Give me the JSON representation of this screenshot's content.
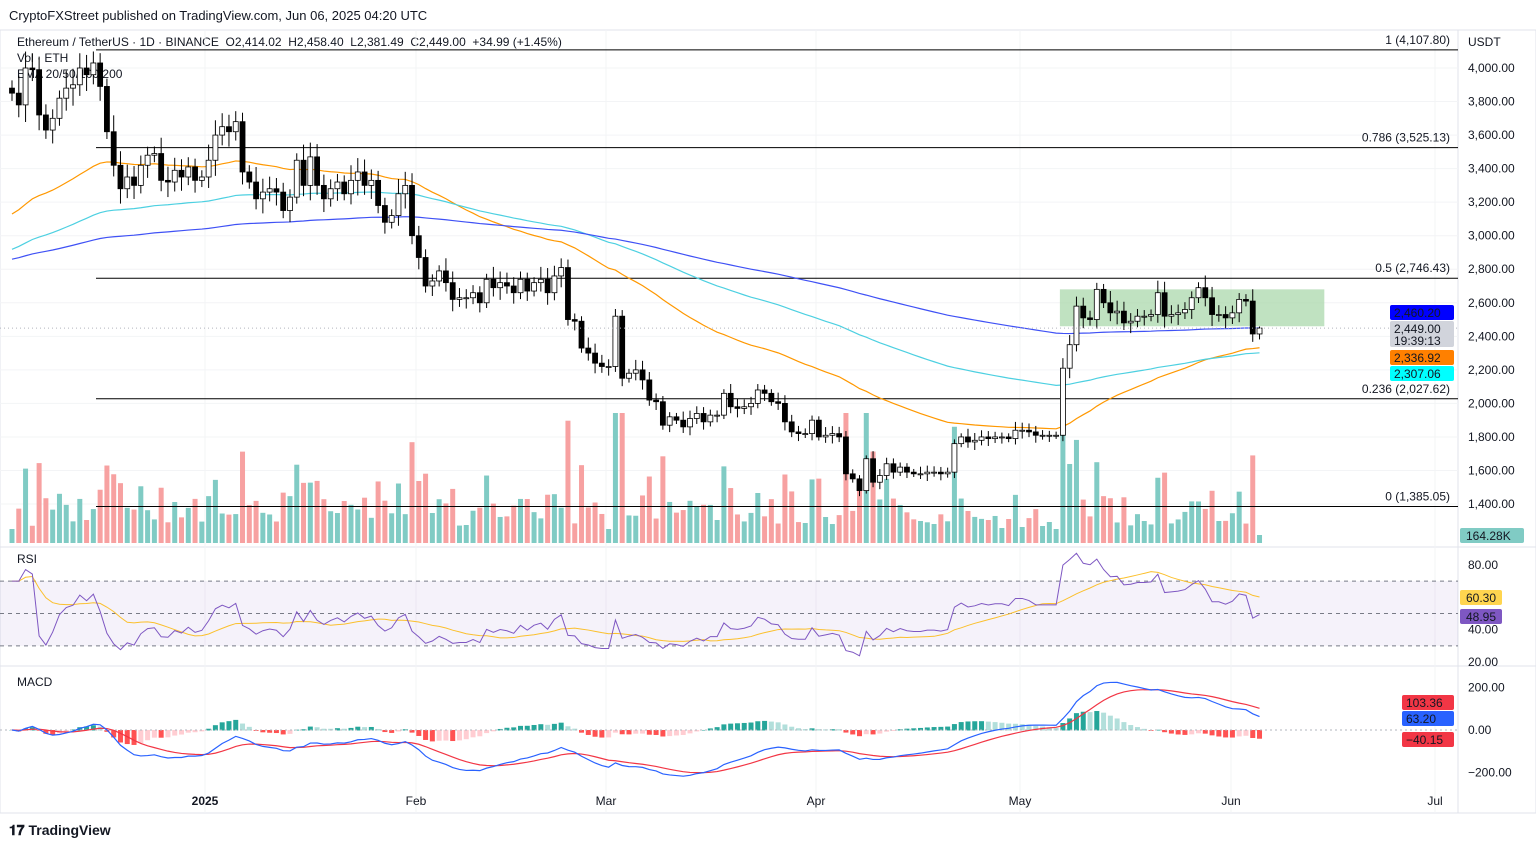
{
  "header": {
    "published": "CryptoFXStreet published on TradingView.com, Jun 06, 2025 04:20 UTC"
  },
  "legend": {
    "symbol": "Ethereum / TetherUS · 1D · BINANCE",
    "open": "O2,414.02",
    "high": "H2,458.40",
    "low": "L2,381.49",
    "close": "C2,449.00",
    "change": "+34.99 (+1.45%)",
    "volume": "Vol · ETH",
    "ema": "EMA 20/50/100/200",
    "rsi": "RSI",
    "macd": "MACD"
  },
  "brand": "TradingView",
  "chart_data": {
    "type": "candlestick",
    "x_start": "2024-12-04",
    "x_end": "2025-06-06",
    "x_tick_labels": [
      "2025",
      "Feb",
      "Mar",
      "Apr",
      "May",
      "Jun",
      "Jul"
    ],
    "y_unit": "USDT",
    "y_ticks": [
      4000,
      3800,
      3600,
      3400,
      3200,
      3000,
      2800,
      2600,
      2400,
      2200,
      2000,
      1800,
      1600,
      1400
    ],
    "closes": [
      3850,
      3780,
      4000,
      3990,
      3720,
      3630,
      3700,
      3820,
      3880,
      3900,
      4000,
      3960,
      4030,
      3890,
      3620,
      3420,
      3280,
      3350,
      3300,
      3420,
      3480,
      3490,
      3330,
      3320,
      3390,
      3350,
      3410,
      3330,
      3350,
      3450,
      3600,
      3650,
      3620,
      3680,
      3380,
      3320,
      3220,
      3260,
      3280,
      3260,
      3150,
      3230,
      3450,
      3300,
      3470,
      3300,
      3220,
      3280,
      3320,
      3250,
      3330,
      3380,
      3300,
      3330,
      3180,
      3080,
      3120,
      3250,
      3300,
      3000,
      2870,
      2700,
      2730,
      2790,
      2720,
      2620,
      2630,
      2630,
      2660,
      2600,
      2740,
      2690,
      2720,
      2700,
      2660,
      2740,
      2670,
      2720,
      2740,
      2660,
      2760,
      2810,
      2500,
      2490,
      2330,
      2300,
      2240,
      2220,
      2220,
      2520,
      2150,
      2180,
      2200,
      2140,
      2020,
      2010,
      1870,
      1920,
      1900,
      1860,
      1910,
      1940,
      1890,
      1930,
      1930,
      2060,
      1980,
      1970,
      1980,
      2000,
      2080,
      2060,
      2010,
      2000,
      1890,
      1830,
      1820,
      1820,
      1900,
      1800,
      1810,
      1820,
      1800,
      1580,
      1550,
      1480,
      1670,
      1530,
      1570,
      1640,
      1590,
      1620,
      1590,
      1580,
      1580,
      1590,
      1590,
      1580,
      1590,
      1760,
      1800,
      1770,
      1780,
      1800,
      1790,
      1800,
      1800,
      1790,
      1840,
      1840,
      1830,
      1810,
      1810,
      1810,
      1810,
      2210,
      2350,
      2580,
      2510,
      2500,
      2680,
      2600,
      2540,
      2550,
      2480,
      2490,
      2520,
      2520,
      2530,
      2660,
      2520,
      2530,
      2540,
      2560,
      2630,
      2690,
      2630,
      2530,
      2530,
      2510,
      2540,
      2620,
      2610,
      2414,
      2449
    ],
    "last_open": 2414.02,
    "last_high": 2458.4,
    "last_low": 2381.49,
    "fib_levels": [
      {
        "label": "1 (4,107.80)",
        "value": 4107.8
      },
      {
        "label": "0.786 (3,525.13)",
        "value": 3525.13
      },
      {
        "label": "0.5 (2,746.43)",
        "value": 2746.43
      },
      {
        "label": "0.236 (2,027.62)",
        "value": 2027.62
      },
      {
        "label": "0 (1,385.05)",
        "value": 1385.05
      }
    ],
    "consolidation_box": {
      "from": "2025-05-08",
      "to": "2025-06-06",
      "low": 2460,
      "high": 2680,
      "color": "#a5d6a7"
    },
    "price_labels": [
      {
        "text": "2,460.20",
        "color": "#0000ff",
        "fg": "#ffffff",
        "value": 2460.2
      },
      {
        "text": "2,449.00",
        "sub": "19:39:13",
        "color": "#d1d4dc",
        "fg": "#131722",
        "value": 2449
      },
      {
        "text": "2,336.92",
        "color": "#ff8000",
        "fg": "#ffffff",
        "value": 2336.92
      },
      {
        "text": "2,307.06",
        "color": "#00ffff",
        "fg": "#131722",
        "value": 2307.06
      }
    ],
    "ema_colors": {
      "ema50": "#ff9800",
      "ema100": "#4dd0e1",
      "ema200": "#3f51f5"
    },
    "volume_label": "164.28K",
    "rsi": {
      "ticks": [
        80,
        40,
        20
      ],
      "labels": [
        {
          "text": "60.30",
          "color": "#ffd54f"
        },
        {
          "text": "48.95",
          "color": "#7e57c2"
        }
      ],
      "band": [
        30,
        70
      ]
    },
    "macd": {
      "ticks": [
        "200.00",
        "0.00",
        "−200.00"
      ],
      "labels": [
        {
          "text": "103.36",
          "color": "#f23645"
        },
        {
          "text": "63.20",
          "color": "#2962ff"
        },
        {
          "text": "−40.15",
          "color": "#f23645"
        }
      ]
    },
    "colors": {
      "up": "#ffffff",
      "down": "#000000",
      "vol_up": "#80cbc4",
      "vol_down": "#f7a1a1"
    }
  }
}
